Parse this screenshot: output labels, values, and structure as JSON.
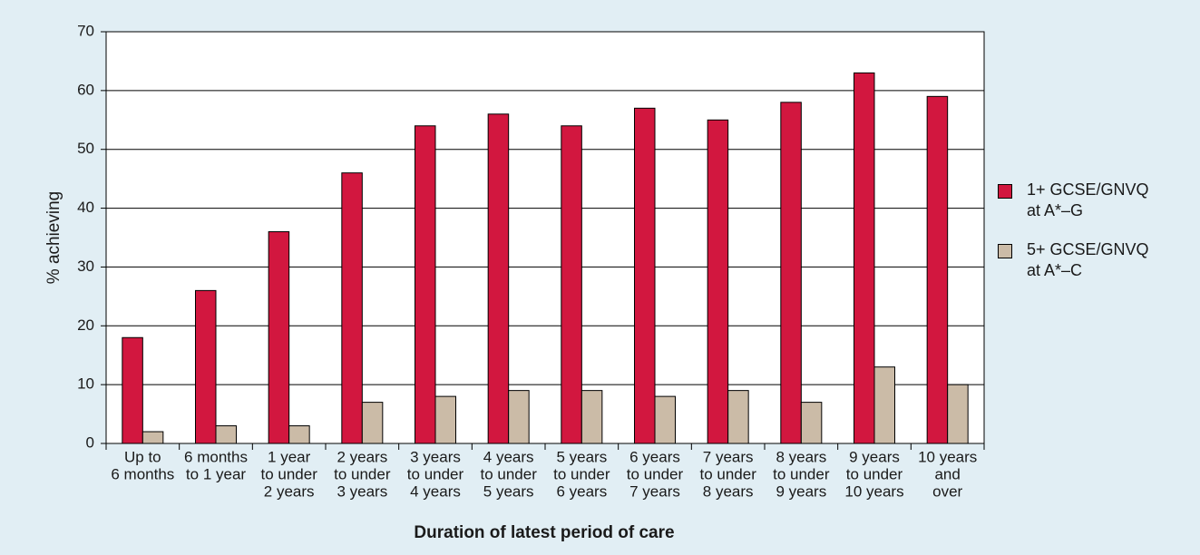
{
  "chart_data": {
    "type": "bar",
    "x_label": "Duration of latest period of care",
    "y_label": "% achieving",
    "categories": [
      [
        "Up to",
        "6 months"
      ],
      [
        "6 months",
        "to 1 year"
      ],
      [
        "1 year",
        "to under",
        "2 years"
      ],
      [
        "2 years",
        "to under",
        "3 years"
      ],
      [
        "3 years",
        "to under",
        "4 years"
      ],
      [
        "4 years",
        "to under",
        "5 years"
      ],
      [
        "5 years",
        "to under",
        "6 years"
      ],
      [
        "6 years",
        "to under",
        "7 years"
      ],
      [
        "7 years",
        "to under",
        "8 years"
      ],
      [
        "8 years",
        "to under",
        "9 years"
      ],
      [
        "9 years",
        "to under",
        "10 years"
      ],
      [
        "10 years",
        "and",
        "over"
      ]
    ],
    "series": [
      {
        "name": "1+ GCSE/GNVQ at A*–G",
        "color": "#d2173f",
        "values": [
          18,
          26,
          36,
          46,
          54,
          56,
          54,
          57,
          55,
          58,
          63,
          59
        ]
      },
      {
        "name": "5+ GCSE/GNVQ at A*–C",
        "color": "#cbbba7",
        "values": [
          2,
          3,
          3,
          7,
          8,
          9,
          9,
          8,
          9,
          7,
          13,
          10
        ]
      }
    ],
    "ylim": [
      0,
      70
    ],
    "yticks": [
      0,
      10,
      20,
      30,
      40,
      50,
      60,
      70
    ],
    "grid": true,
    "legend": "right"
  }
}
